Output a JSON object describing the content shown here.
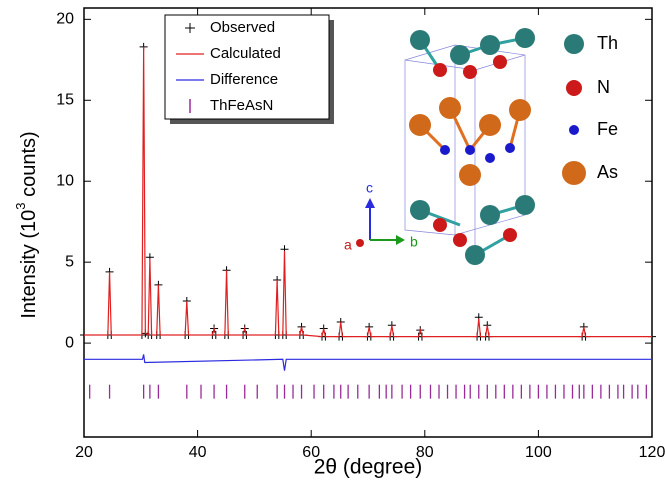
{
  "chart_data": {
    "type": "line",
    "xlabel": "2θ (degree)",
    "ylabel": [
      "Intensity (10",
      "3",
      " counts)"
    ],
    "xlim": [
      20,
      120
    ],
    "xticks": [
      20,
      40,
      60,
      80,
      100,
      120
    ],
    "ylim": [
      -5.8,
      20.7
    ],
    "yticks": [
      0,
      5,
      10,
      15,
      20
    ],
    "series": [
      {
        "name": "Observed",
        "color": "#000000",
        "style": "markers",
        "x": [
          20,
          24.2,
          24.5,
          24.8,
          30.2,
          30.5,
          30.8,
          31.3,
          31.6,
          31.9,
          32.8,
          33.1,
          33.4,
          37.8,
          38.1,
          38.4,
          42.6,
          42.9,
          43.2,
          44.8,
          45.1,
          45.4,
          48.0,
          48.3,
          48.6,
          53.7,
          54.0,
          54.3,
          55.0,
          55.3,
          55.6,
          58.0,
          58.3,
          58.6,
          61.9,
          62.2,
          62.5,
          64.9,
          65.2,
          65.5,
          69.9,
          70.2,
          70.5,
          73.9,
          74.2,
          74.5,
          78.9,
          79.2,
          79.5,
          89.2,
          89.5,
          89.8,
          90.7,
          91.0,
          91.3,
          107.7,
          108.0,
          108.3,
          120
        ],
        "values": [
          0.5,
          0.5,
          4.4,
          0.5,
          0.5,
          18.3,
          0.6,
          0.5,
          5.3,
          0.5,
          0.5,
          3.6,
          0.5,
          0.5,
          2.6,
          0.5,
          0.5,
          0.9,
          0.5,
          0.5,
          4.5,
          0.5,
          0.5,
          0.9,
          0.5,
          0.5,
          3.9,
          0.5,
          0.5,
          5.8,
          0.5,
          0.5,
          1.0,
          0.5,
          0.4,
          0.9,
          0.4,
          0.4,
          1.3,
          0.4,
          0.4,
          1.0,
          0.4,
          0.4,
          1.1,
          0.4,
          0.4,
          0.8,
          0.4,
          0.4,
          1.6,
          0.4,
          0.4,
          1.1,
          0.4,
          0.4,
          1.0,
          0.4,
          0.4
        ]
      },
      {
        "name": "Calculated",
        "color": "#e02020",
        "style": "line",
        "x": [
          20,
          24.2,
          24.5,
          24.8,
          30.2,
          30.5,
          30.8,
          31.3,
          31.6,
          31.9,
          32.8,
          33.1,
          33.4,
          37.8,
          38.1,
          38.4,
          42.6,
          42.9,
          43.2,
          44.8,
          45.1,
          45.4,
          48.0,
          48.3,
          48.6,
          53.7,
          54.0,
          54.3,
          55.0,
          55.3,
          55.6,
          58.0,
          58.3,
          58.6,
          61.9,
          62.2,
          62.5,
          64.9,
          65.2,
          65.5,
          69.9,
          70.2,
          70.5,
          73.9,
          74.2,
          74.5,
          78.9,
          79.2,
          79.5,
          89.2,
          89.5,
          89.8,
          90.7,
          91.0,
          91.3,
          107.7,
          108.0,
          108.3,
          120
        ],
        "values": [
          0.5,
          0.5,
          4.4,
          0.5,
          0.5,
          18.3,
          0.6,
          0.5,
          5.2,
          0.5,
          0.5,
          3.6,
          0.5,
          0.5,
          2.6,
          0.5,
          0.5,
          0.9,
          0.5,
          0.5,
          4.5,
          0.5,
          0.5,
          0.9,
          0.5,
          0.5,
          3.9,
          0.5,
          0.5,
          5.7,
          0.5,
          0.5,
          1.0,
          0.5,
          0.4,
          0.9,
          0.4,
          0.4,
          1.3,
          0.4,
          0.4,
          1.0,
          0.4,
          0.4,
          1.1,
          0.4,
          0.4,
          0.8,
          0.4,
          0.4,
          1.5,
          0.4,
          0.4,
          1.1,
          0.4,
          0.4,
          1.0,
          0.4,
          0.4
        ]
      },
      {
        "name": "Difference",
        "color": "#2a2ae0",
        "style": "line",
        "x": [
          20,
          30.3,
          30.5,
          30.7,
          55.0,
          55.3,
          55.6,
          120
        ],
        "values": [
          -1.0,
          -1.0,
          -0.7,
          -1.2,
          -1.0,
          -1.7,
          -1.0,
          -1.0
        ]
      },
      {
        "name": "ThFeAsN",
        "color": "#9a2a9a",
        "style": "bragg",
        "y": -3.0,
        "x": [
          21.0,
          24.5,
          30.5,
          31.6,
          33.1,
          38.1,
          40.6,
          42.9,
          45.1,
          48.3,
          50.5,
          54.0,
          55.3,
          56.8,
          58.3,
          60.5,
          62.2,
          64.0,
          65.2,
          66.5,
          68.2,
          70.2,
          72.0,
          73.2,
          74.2,
          76.0,
          77.5,
          79.2,
          81.0,
          82.5,
          84.0,
          85.5,
          87.0,
          88.0,
          89.5,
          91.0,
          92.5,
          94.0,
          95.5,
          97.0,
          98.5,
          100.0,
          101.5,
          103.0,
          104.5,
          106.0,
          107.2,
          108.0,
          109.5,
          111.0,
          112.5,
          114.0,
          115.0,
          116.5,
          117.5,
          119.0
        ]
      }
    ]
  },
  "inset": {
    "atoms": [
      "Th",
      "N",
      "Fe",
      "As"
    ],
    "axes": [
      "c",
      "a",
      "b"
    ]
  }
}
